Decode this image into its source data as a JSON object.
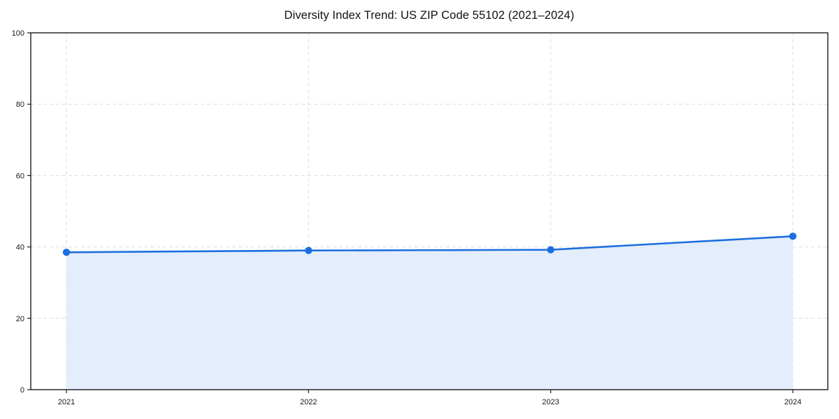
{
  "page": {
    "background": "#ffffff"
  },
  "chart_data": {
    "type": "line",
    "title": "Diversity Index Trend: US ZIP Code 55102 (2021–2024)",
    "x": [
      2021,
      2022,
      2023,
      2024
    ],
    "xtick_labels": [
      "2021",
      "2022",
      "2023",
      "2024"
    ],
    "series": [
      {
        "name": "Diversity Index",
        "values": [
          38.5,
          39.0,
          39.2,
          43.0
        ]
      }
    ],
    "area_fill": true,
    "xlabel": "",
    "ylabel": "",
    "ylim": [
      0,
      100
    ],
    "yticks": [
      0,
      20,
      40,
      60,
      80,
      100
    ],
    "grid": "dashed-both-axes",
    "legend": "none",
    "marker": "circle",
    "colors": {
      "line": "#1c6fe0",
      "marker": "#1c6fe0",
      "area": "#e4edfb",
      "grid": "#dcdcdc",
      "axis": "#1a1a1a",
      "tick_label": "#1a1a1a",
      "title": "#111111",
      "background": "#ffffff"
    }
  }
}
